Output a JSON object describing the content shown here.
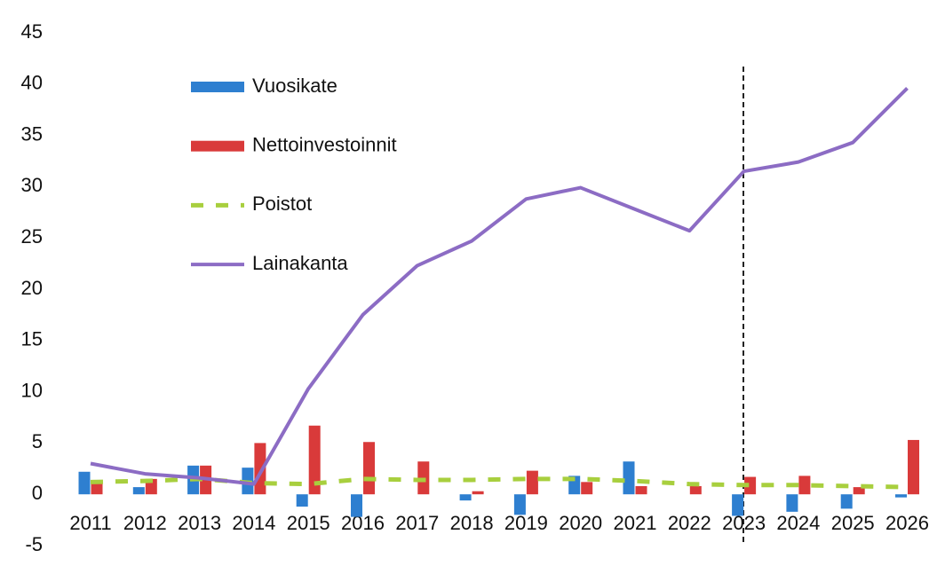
{
  "chart_data": {
    "type": "combo",
    "categories": [
      "2011",
      "2012",
      "2013",
      "2014",
      "2015",
      "2016",
      "2017",
      "2018",
      "2019",
      "2020",
      "2021",
      "2022",
      "2023",
      "2024",
      "2025",
      "2026"
    ],
    "series": [
      {
        "name": "Vuosikate",
        "type": "bar",
        "color": "#2e7fd0",
        "values": [
          2.2,
          0.7,
          2.8,
          2.6,
          -1.2,
          -2.2,
          0,
          -0.6,
          -2.0,
          1.8,
          3.2,
          0,
          -2.1,
          -1.7,
          -1.4,
          -0.3
        ]
      },
      {
        "name": "Nettoinvestoinnit",
        "type": "bar",
        "color": "#d93a3a",
        "values": [
          1.1,
          1.5,
          2.8,
          5.0,
          6.7,
          5.1,
          3.2,
          0.3,
          2.3,
          1.2,
          0.8,
          0.8,
          1.7,
          1.8,
          0.7,
          5.3
        ]
      },
      {
        "name": "Poistot",
        "type": "dashed-line",
        "color": "#a8cf3e",
        "values": [
          1.2,
          1.3,
          1.5,
          1.1,
          1.0,
          1.5,
          1.4,
          1.4,
          1.5,
          1.5,
          1.3,
          1.0,
          0.9,
          0.9,
          0.8,
          0.7
        ]
      },
      {
        "name": "Lainakanta",
        "type": "line",
        "color": "#8c6cc4",
        "values": [
          3.0,
          2.0,
          1.6,
          1.0,
          10.3,
          17.5,
          22.3,
          24.7,
          28.8,
          29.9,
          27.8,
          25.7,
          31.5,
          32.4,
          34.3,
          39.6
        ]
      }
    ],
    "ylim": [
      -5,
      45
    ],
    "yticks": [
      -5,
      0,
      5,
      10,
      15,
      20,
      25,
      30,
      35,
      40,
      45
    ],
    "grid": false
  }
}
